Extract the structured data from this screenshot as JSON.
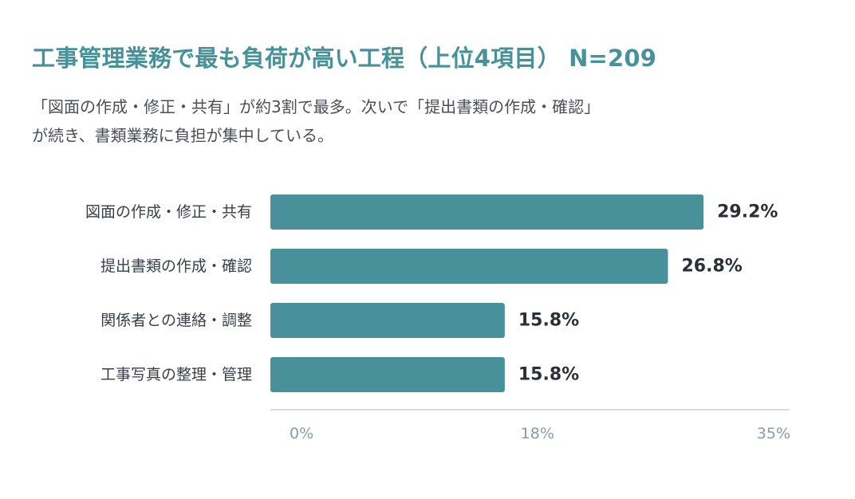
{
  "header": {
    "title": "工事管理業務で最も負荷が高い工程（上位4項目） N=209",
    "subtitle_line1": "「図面の作成・修正・共有」が約3割で最多。次いで「提出書類の作成・確認」",
    "subtitle_line2": "が続き、書類業務に負担が集中している。"
  },
  "chart_data": {
    "type": "bar",
    "orientation": "horizontal",
    "categories": [
      "図面の作成・修正・共有",
      "提出書類の作成・確認",
      "関係者との連絡・調整",
      "工事写真の整理・管理"
    ],
    "values": [
      29.2,
      26.8,
      15.8,
      15.8
    ],
    "value_labels": [
      "29.2%",
      "26.8%",
      "15.8%",
      "15.8%"
    ],
    "xlim": [
      0,
      35
    ],
    "ticks": [
      0,
      18,
      35
    ],
    "tick_labels": [
      "0%",
      "18%",
      "35%"
    ],
    "grid": false,
    "bar_color": "#48909a",
    "axis_color": "#c8d3dc"
  }
}
